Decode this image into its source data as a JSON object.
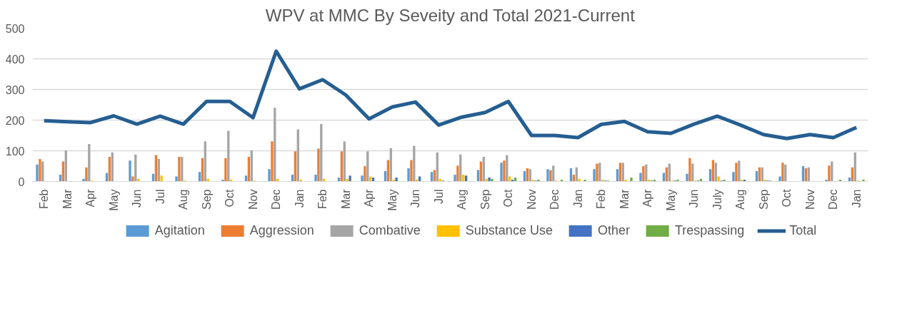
{
  "chart_data": {
    "type": "bar",
    "title": "WPV at MMC By Seveity and Total 2021-Current",
    "categories": [
      "Feb",
      "Mar",
      "Apr",
      "May",
      "Jun",
      "Jul",
      "Aug",
      "Sep",
      "Oct",
      "Nov",
      "Dec",
      "Jan",
      "Feb",
      "Mar",
      "Apr",
      "May",
      "Jun",
      "Jul",
      "Aug",
      "Sep",
      "Oct",
      "Nov",
      "Dec",
      "Jan",
      "Feb",
      "Mar",
      "Apr",
      "May",
      "Jun",
      "July",
      "Aug",
      "Sep",
      "Oct",
      "Nov",
      "Dec",
      "Jan"
    ],
    "series": [
      {
        "name": "Agitation",
        "color": "#5b9bd5",
        "values": [
          55,
          22,
          9,
          28,
          68,
          25,
          16,
          31,
          6,
          19,
          40,
          22,
          22,
          13,
          19,
          34,
          43,
          31,
          22,
          37,
          61,
          34,
          40,
          43,
          40,
          40,
          28,
          28,
          25,
          40,
          31,
          34,
          16,
          50,
          6,
          13
        ]
      },
      {
        "name": "Aggression",
        "color": "#ed7d31",
        "values": [
          73,
          65,
          46,
          80,
          16,
          86,
          80,
          76,
          76,
          80,
          131,
          98,
          107,
          98,
          50,
          70,
          70,
          37,
          52,
          65,
          68,
          43,
          37,
          22,
          58,
          61,
          50,
          46,
          76,
          70,
          61,
          46,
          61,
          43,
          52,
          46
        ]
      },
      {
        "name": "Combative",
        "color": "#a5a5a5",
        "values": [
          65,
          101,
          122,
          95,
          88,
          73,
          80,
          131,
          165,
          101,
          240,
          170,
          188,
          131,
          98,
          109,
          116,
          95,
          88,
          80,
          86,
          40,
          52,
          46,
          61,
          61,
          55,
          58,
          58,
          61,
          68,
          46,
          55,
          46,
          65,
          95
        ]
      },
      {
        "name": "Substance Use",
        "color": "#ffc000",
        "values": [
          0,
          0,
          3,
          0,
          9,
          19,
          3,
          9,
          6,
          3,
          9,
          6,
          9,
          9,
          16,
          6,
          6,
          9,
          22,
          9,
          16,
          6,
          3,
          9,
          6,
          6,
          6,
          3,
          3,
          16,
          6,
          6,
          0,
          0,
          0,
          3
        ]
      },
      {
        "name": "Other",
        "color": "#4472c4",
        "values": [
          0,
          0,
          0,
          0,
          0,
          0,
          0,
          0,
          0,
          0,
          0,
          0,
          0,
          19,
          13,
          13,
          16,
          3,
          19,
          13,
          6,
          3,
          0,
          0,
          3,
          0,
          3,
          3,
          3,
          3,
          6,
          3,
          0,
          0,
          0,
          0
        ]
      },
      {
        "name": "Trespassing",
        "color": "#70ad47",
        "values": [
          0,
          0,
          0,
          0,
          0,
          0,
          0,
          0,
          0,
          0,
          0,
          0,
          0,
          0,
          0,
          0,
          0,
          0,
          0,
          9,
          13,
          6,
          6,
          6,
          3,
          13,
          6,
          6,
          9,
          6,
          0,
          3,
          0,
          0,
          6,
          6
        ]
      },
      {
        "name": "Total",
        "type": "line",
        "color": "#255e91",
        "values": [
          198,
          195,
          192,
          214,
          187,
          213,
          187,
          261,
          261,
          208,
          425,
          302,
          332,
          282,
          204,
          243,
          259,
          184,
          210,
          225,
          261,
          150,
          150,
          143,
          186,
          196,
          162,
          157,
          187,
          213,
          184,
          153,
          140,
          153,
          143,
          176
        ]
      }
    ],
    "ylim": [
      0,
      500
    ],
    "yticks": [
      0,
      100,
      200,
      300,
      400,
      500
    ],
    "grid": "y",
    "legend": "bottom"
  }
}
